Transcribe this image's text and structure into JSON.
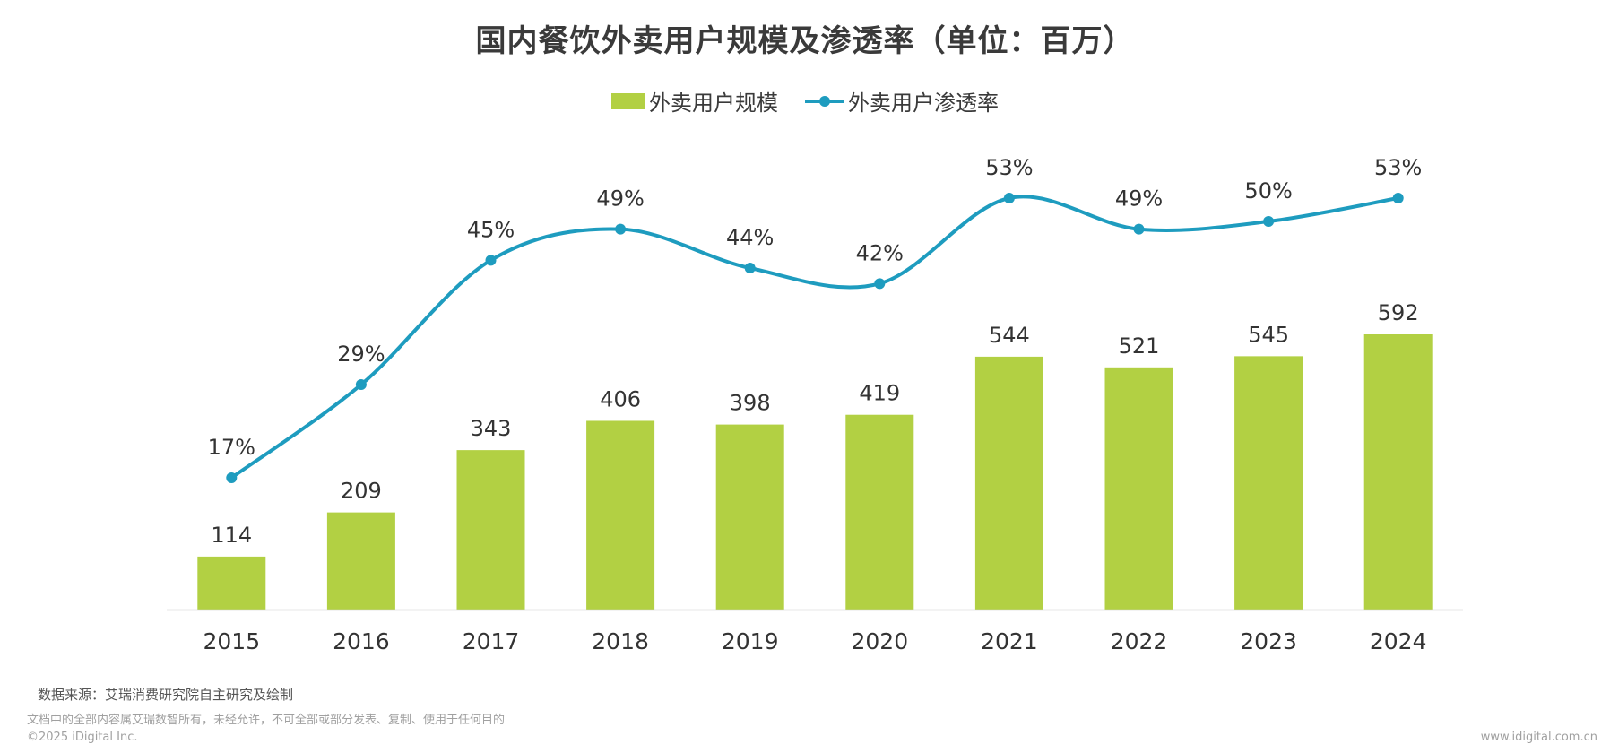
{
  "chart_data": {
    "type": "bar",
    "title": "国内餐饮外卖用户规模及渗透率（单位：百万）",
    "categories": [
      "2015",
      "2016",
      "2017",
      "2018",
      "2019",
      "2020",
      "2021",
      "2022",
      "2023",
      "2024"
    ],
    "series": [
      {
        "name": "外卖用户规模",
        "type": "bar",
        "color": "#b2d043",
        "values": [
          114,
          209,
          343,
          406,
          398,
          419,
          544,
          521,
          545,
          592
        ],
        "labels": [
          "114",
          "209",
          "343",
          "406",
          "398",
          "419",
          "544",
          "521",
          "545",
          "592"
        ]
      },
      {
        "name": "外卖用户渗透率",
        "type": "line",
        "smooth": true,
        "color": "#1e9cbf",
        "values": [
          17,
          29,
          45,
          49,
          44,
          42,
          53,
          49,
          50,
          53
        ],
        "labels": [
          "17%",
          "29%",
          "45%",
          "49%",
          "44%",
          "42%",
          "53%",
          "49%",
          "50%",
          "53%"
        ]
      }
    ],
    "xlabel": "",
    "ylabel": "",
    "legend": "top-center",
    "grid": false
  },
  "footer": {
    "source": "数据来源：艾瑞消费研究院自主研究及绘制",
    "rights": "文档中的全部内容属艾瑞数智所有，未经允许，不可全部或部分发表、复制、使用于任何目的",
    "copyright": "©2025 iDigital Inc.",
    "url": "www.idigital.com.cn"
  }
}
